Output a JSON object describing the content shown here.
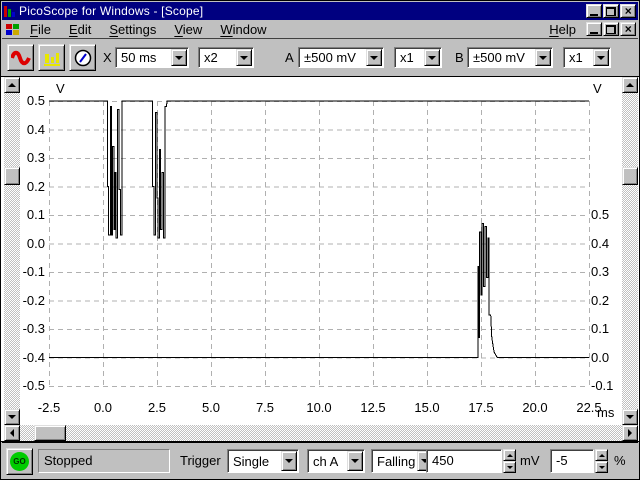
{
  "window": {
    "title": "PicoScope for Windows - [Scope]"
  },
  "menu": {
    "items": [
      {
        "label": "File",
        "u": 0
      },
      {
        "label": "Edit",
        "u": 0
      },
      {
        "label": "Settings",
        "u": 0
      },
      {
        "label": "View",
        "u": 0
      },
      {
        "label": "Window",
        "u": 0
      }
    ],
    "help": {
      "label": "Help",
      "u": 0
    }
  },
  "toolbar": {
    "view_buttons": [
      "scope",
      "spectrum",
      "meter"
    ],
    "timebase_label": "X",
    "timebase_value": "50 ms",
    "x_multiplier_value": "x2",
    "channel_a_label": "A",
    "channel_a_range": "±500 mV",
    "channel_a_multiplier": "x1",
    "channel_b_label": "B",
    "channel_b_range": "±500 mV",
    "channel_b_multiplier": "x1"
  },
  "status_bar": {
    "go_label": "GO",
    "status": "Stopped",
    "trigger_label": "Trigger",
    "trigger_mode": "Single",
    "trigger_channel": "ch A",
    "trigger_direction": "Falling",
    "trigger_threshold": "450",
    "trigger_threshold_unit": "mV",
    "trigger_delay": "-5",
    "trigger_delay_unit": "%"
  },
  "colors": {
    "title_bar": "#000080",
    "chrome": "#c0c0c0",
    "trace": "#000000",
    "grid": "#b0b0b0",
    "go_green": "#00cc00"
  },
  "chart_data": {
    "type": "line",
    "title": "",
    "x_unit": "ms",
    "y_unit": "V",
    "x_range": [
      -2.5,
      22.5
    ],
    "x_ticks": [
      -2.5,
      0.0,
      2.5,
      5.0,
      7.5,
      10.0,
      12.5,
      15.0,
      17.5,
      20.0,
      22.5
    ],
    "grid": true,
    "left_axis": {
      "unit": "V",
      "range": [
        -0.5,
        0.5
      ],
      "ticks": [
        0.5,
        0.4,
        0.3,
        0.2,
        0.1,
        0.0,
        -0.1,
        -0.2,
        -0.3,
        -0.4,
        -0.5
      ]
    },
    "right_axis": {
      "unit": "V",
      "ticks": [
        0.5,
        0.4,
        0.3,
        0.2,
        0.1,
        0.0,
        -0.1
      ],
      "offset_v": -0.4
    },
    "series": [
      {
        "name": "channel-a",
        "baseline_v": 0.5,
        "points": [
          [
            -2.5,
            0.5
          ],
          [
            0.2,
            0.5
          ],
          [
            0.2,
            0.2
          ],
          [
            0.25,
            0.2
          ],
          [
            0.25,
            0.03
          ],
          [
            0.34,
            0.03
          ],
          [
            0.34,
            0.48
          ],
          [
            0.4,
            0.48
          ],
          [
            0.4,
            0.03
          ],
          [
            0.45,
            0.03
          ],
          [
            0.45,
            0.34
          ],
          [
            0.5,
            0.34
          ],
          [
            0.5,
            0.05
          ],
          [
            0.55,
            0.05
          ],
          [
            0.55,
            0.25
          ],
          [
            0.6,
            0.25
          ],
          [
            0.6,
            0.02
          ],
          [
            0.68,
            0.02
          ],
          [
            0.68,
            0.47
          ],
          [
            0.74,
            0.47
          ],
          [
            0.74,
            0.19
          ],
          [
            0.8,
            0.19
          ],
          [
            0.8,
            0.03
          ],
          [
            0.88,
            0.03
          ],
          [
            0.88,
            0.5
          ],
          [
            2.3,
            0.5
          ],
          [
            2.3,
            0.2
          ],
          [
            2.35,
            0.2
          ],
          [
            2.35,
            0.03
          ],
          [
            2.43,
            0.03
          ],
          [
            2.43,
            0.46
          ],
          [
            2.49,
            0.46
          ],
          [
            2.49,
            0.16
          ],
          [
            2.54,
            0.16
          ],
          [
            2.54,
            0.02
          ],
          [
            2.61,
            0.02
          ],
          [
            2.61,
            0.33
          ],
          [
            2.67,
            0.33
          ],
          [
            2.67,
            0.05
          ],
          [
            2.73,
            0.05
          ],
          [
            2.73,
            0.25
          ],
          [
            2.79,
            0.25
          ],
          [
            2.79,
            0.02
          ],
          [
            2.87,
            0.02
          ],
          [
            2.87,
            0.48
          ],
          [
            2.93,
            0.48
          ],
          [
            2.97,
            0.5
          ],
          [
            22.5,
            0.5
          ]
        ]
      },
      {
        "name": "channel-b",
        "baseline_v": -0.4,
        "points": [
          [
            -2.5,
            -0.4
          ],
          [
            17.35,
            -0.4
          ],
          [
            17.35,
            -0.08
          ],
          [
            17.4,
            -0.08
          ],
          [
            17.4,
            -0.33
          ],
          [
            17.44,
            -0.33
          ],
          [
            17.44,
            0.04
          ],
          [
            17.5,
            0.04
          ],
          [
            17.5,
            -0.18
          ],
          [
            17.55,
            -0.18
          ],
          [
            17.55,
            0.07
          ],
          [
            17.61,
            0.07
          ],
          [
            17.61,
            -0.15
          ],
          [
            17.68,
            -0.15
          ],
          [
            17.68,
            0.06
          ],
          [
            17.75,
            0.06
          ],
          [
            17.75,
            -0.12
          ],
          [
            17.82,
            -0.12
          ],
          [
            17.82,
            0.02
          ],
          [
            17.88,
            0.02
          ],
          [
            17.88,
            -0.25
          ],
          [
            17.95,
            -0.25
          ],
          [
            18.0,
            -0.33
          ],
          [
            18.1,
            -0.38
          ],
          [
            18.25,
            -0.4
          ],
          [
            22.5,
            -0.4
          ]
        ]
      }
    ]
  }
}
